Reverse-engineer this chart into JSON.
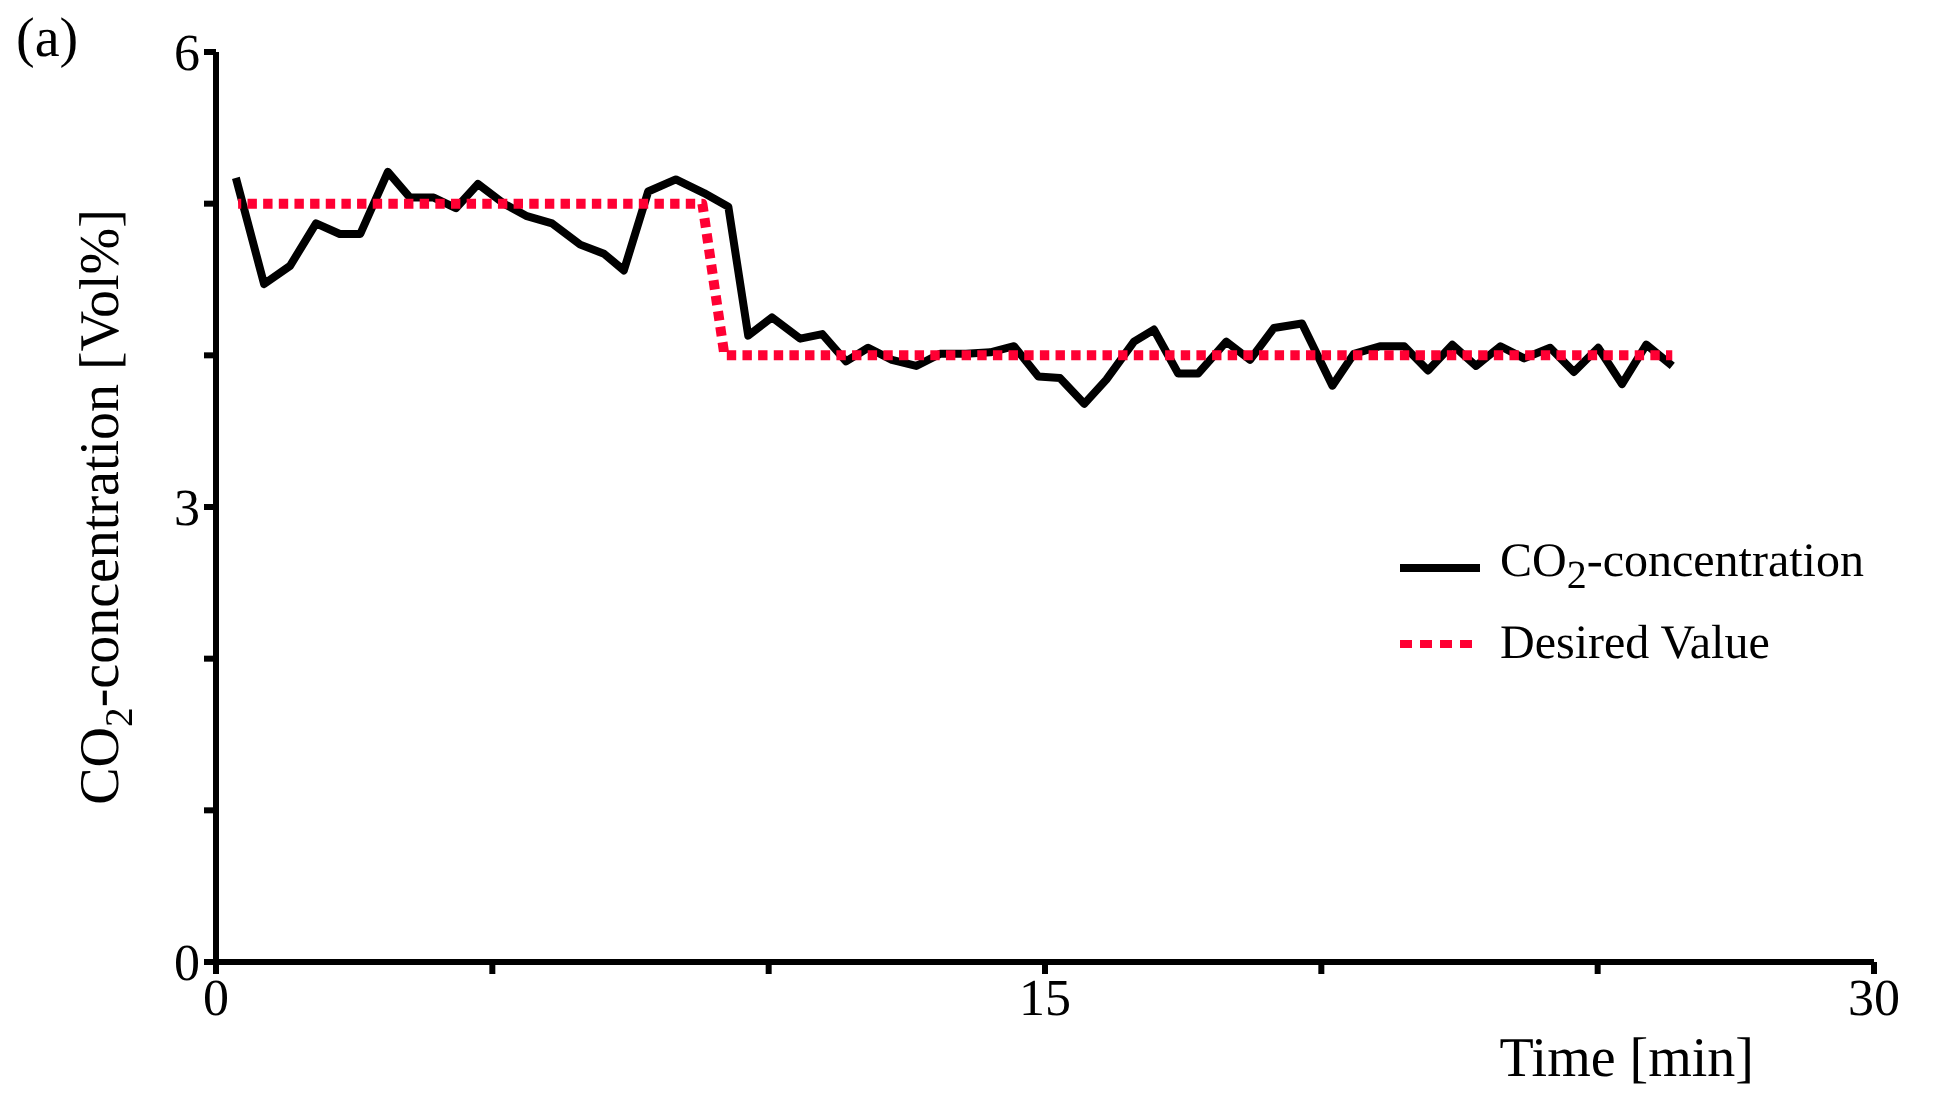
{
  "chart_data": {
    "type": "line",
    "xlabel": "Time [min]",
    "ylabel": "CO$_{2}$-concentration [Vol%]",
    "annotations": [
      "(a)"
    ],
    "xlim": [
      0,
      30
    ],
    "xticks": [
      0,
      {
        "value": 5,
        "label": null
      },
      {
        "value": 10,
        "label": null
      },
      15,
      {
        "value": 20,
        "label": null
      },
      {
        "value": 25,
        "label": null
      },
      30
    ],
    "ylim": [
      0,
      6
    ],
    "yticks": [
      0,
      {
        "value": 1,
        "label": null
      },
      {
        "value": 2,
        "label": null
      },
      3,
      {
        "value": 4,
        "label": null
      },
      {
        "value": 5,
        "label": null
      },
      6
    ],
    "grid": false,
    "legend": "right",
    "marker": "none",
    "series": [
      {
        "name": "CO$_{2}$-concentration",
        "color": "#000000",
        "line_style": "solid",
        "x": [
          0.36,
          0.87,
          1.34,
          1.81,
          2.24,
          2.61,
          3.11,
          3.51,
          3.94,
          4.34,
          4.74,
          5.21,
          5.61,
          6.08,
          6.59,
          7.02,
          7.38,
          7.82,
          8.32,
          8.83,
          9.27,
          9.63,
          10.06,
          10.57,
          10.97,
          11.4,
          11.8,
          12.23,
          12.67,
          13.1,
          13.57,
          14.01,
          14.44,
          14.88,
          15.27,
          15.71,
          16.11,
          16.61,
          16.97,
          17.41,
          17.77,
          18.28,
          18.71,
          19.14,
          19.65,
          20.2,
          20.59,
          21.06,
          21.5,
          21.93,
          22.37,
          22.8,
          23.24,
          23.67,
          24.14,
          24.57,
          25.01,
          25.44,
          25.88,
          26.35
        ],
        "values": [
          5.17,
          4.47,
          4.59,
          4.87,
          4.8,
          4.8,
          5.21,
          5.04,
          5.04,
          4.97,
          5.13,
          5.0,
          4.92,
          4.87,
          4.73,
          4.67,
          4.56,
          5.08,
          5.16,
          5.07,
          4.98,
          4.13,
          4.25,
          4.11,
          4.14,
          3.96,
          4.05,
          3.97,
          3.93,
          4.01,
          4.01,
          4.02,
          4.06,
          3.86,
          3.85,
          3.68,
          3.84,
          4.09,
          4.17,
          3.88,
          3.88,
          4.09,
          3.97,
          4.18,
          4.21,
          3.8,
          4.01,
          4.06,
          4.06,
          3.9,
          4.07,
          3.93,
          4.06,
          3.98,
          4.05,
          3.89,
          4.05,
          3.81,
          4.07,
          3.93
        ]
      },
      {
        "name": "Desired Value",
        "color": "#ff0033",
        "line_style": "dotted",
        "x": [
          0.4,
          8.8,
          9.2,
          26.35
        ],
        "values": [
          5,
          5,
          4,
          4
        ]
      }
    ]
  }
}
